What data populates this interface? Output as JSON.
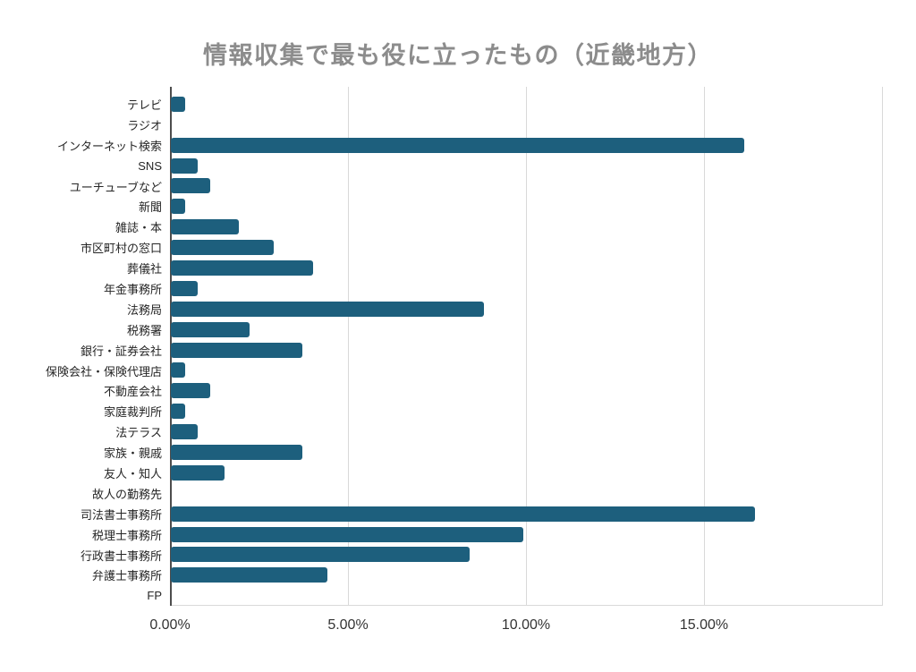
{
  "title": "情報収集で最も役に立ったもの（近畿地方）",
  "colors": {
    "bar": "#1d5f7d",
    "title": "#8c8c8c",
    "gridline": "#d9d9d9",
    "axis_line": "#4d4d4d",
    "tick_label": "#333333",
    "category_label": "#262626"
  },
  "chart_data": {
    "type": "bar",
    "orientation": "horizontal",
    "title": "情報収集で最も役に立ったもの（近畿地方）",
    "categories": [
      "テレビ",
      "ラジオ",
      "インターネット検索",
      "SNS",
      "ユーチューブなど",
      "新聞",
      "雑誌・本",
      "市区町村の窓口",
      "葬儀社",
      "年金事務所",
      "法務局",
      "税務署",
      "銀行・証券会社",
      "保険会社・保険代理店",
      "不動産会社",
      "家庭裁判所",
      "法テラス",
      "家族・親戚",
      "友人・知人",
      "故人の勤務先",
      "司法書士事務所",
      "税理士事務所",
      "行政書士事務所",
      "弁護士事務所",
      "FP"
    ],
    "values": [
      0.4,
      0,
      16.1,
      0.75,
      1.1,
      0.4,
      1.9,
      2.9,
      4.0,
      0.75,
      8.8,
      2.2,
      3.7,
      0.4,
      1.1,
      0.4,
      0.75,
      3.7,
      1.5,
      0,
      16.4,
      9.9,
      8.4,
      4.4,
      0
    ],
    "xlabel": "",
    "ylabel": "",
    "xlim": [
      0,
      20
    ],
    "x_tick_labels": [
      "0.00%",
      "5.00%",
      "10.00%",
      "15.00%"
    ],
    "x_tick_values": [
      0,
      5,
      10,
      15
    ],
    "gridline_values": [
      5,
      10,
      15,
      20
    ],
    "grid": "vertical",
    "legend": false,
    "data_labels": false
  }
}
